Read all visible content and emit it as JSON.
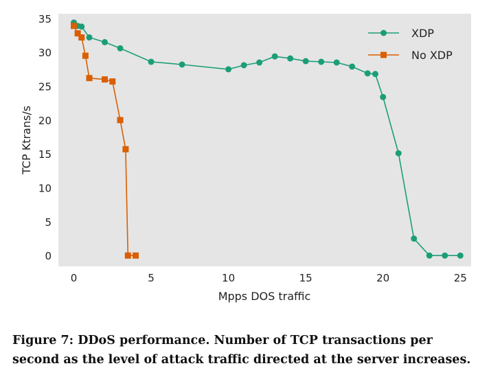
{
  "chart_data": {
    "type": "line",
    "title": "",
    "xlabel": "Mpps DOS traffic",
    "ylabel": "TCP Ktrans/s",
    "xlim": [
      -1,
      25.7
    ],
    "ylim": [
      -1.5,
      35.8
    ],
    "xticks": [
      0,
      5,
      10,
      15,
      20,
      25
    ],
    "yticks": [
      0,
      5,
      10,
      15,
      20,
      25,
      30,
      35
    ],
    "grid": false,
    "background": "#e5e5e5",
    "legend_position": "top-right",
    "series": [
      {
        "name": "XDP",
        "color": "#1b9e77",
        "marker": "circle",
        "x": [
          0,
          0.25,
          0.5,
          1,
          2,
          3,
          5,
          7,
          10,
          11,
          12,
          13,
          14,
          15,
          16,
          17,
          18,
          19,
          19.5,
          20,
          21,
          22,
          23,
          24,
          25
        ],
        "y": [
          34.5,
          34.0,
          33.9,
          32.3,
          31.6,
          30.7,
          28.7,
          28.3,
          27.6,
          28.2,
          28.6,
          29.5,
          29.2,
          28.8,
          28.7,
          28.6,
          28.0,
          27.0,
          26.9,
          23.5,
          15.2,
          2.6,
          0.1,
          0.1,
          0.1
        ]
      },
      {
        "name": "No XDP",
        "color": "#d95f02",
        "marker": "square",
        "x": [
          0,
          0.25,
          0.5,
          0.75,
          1,
          2,
          2.5,
          3,
          3.35,
          3.5,
          4
        ],
        "y": [
          34.0,
          32.9,
          32.3,
          29.6,
          26.3,
          26.1,
          25.8,
          20.1,
          15.8,
          0.1,
          0.1
        ]
      }
    ]
  },
  "caption": {
    "text": "Figure 7:  DDoS performance. Number of TCP transactions per second as the level of attack traffic directed at the server increases."
  }
}
